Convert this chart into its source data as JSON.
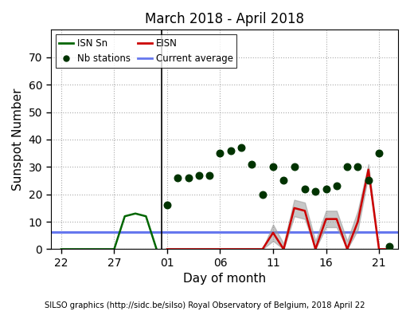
{
  "title": "March 2018 - April 2018",
  "xlabel": "Day of month",
  "ylabel": "Sunspot Number",
  "footer": "SILSO graphics (http://sidc.be/silso) Royal Observatory of Belgium, 2018 April 22",
  "ylim": [
    0,
    80
  ],
  "yticks": [
    0,
    10,
    20,
    30,
    40,
    50,
    60,
    70
  ],
  "current_average": 6.3,
  "background_color": "#ffffff",
  "plot_bg_color": "#ffffff",
  "isn_sn_march_days": [
    22,
    23,
    24,
    25,
    26,
    27,
    28,
    29,
    30,
    31
  ],
  "isn_sn_y": [
    0,
    0,
    0,
    0,
    0,
    0,
    12,
    13,
    12,
    0
  ],
  "eisn_april_days": [
    1,
    2,
    3,
    4,
    5,
    6,
    7,
    8,
    9,
    10,
    11,
    12,
    13,
    14,
    15,
    16,
    17,
    18,
    19,
    20,
    21,
    22
  ],
  "eisn_y": [
    0,
    0,
    0,
    0,
    0,
    0,
    0,
    0,
    0,
    0,
    6,
    0,
    15,
    14,
    0,
    11,
    11,
    0,
    10,
    29,
    0,
    0
  ],
  "eisn_shade_upper": [
    0,
    0,
    0,
    0,
    0,
    0,
    0,
    0,
    0,
    0,
    9,
    2,
    18,
    17,
    3,
    14,
    14,
    3,
    14,
    31,
    0,
    0
  ],
  "eisn_shade_lower": [
    0,
    0,
    0,
    0,
    0,
    0,
    0,
    0,
    0,
    0,
    3,
    0,
    12,
    11,
    0,
    8,
    8,
    0,
    7,
    27,
    0,
    0
  ],
  "nb_april_days": [
    1,
    2,
    3,
    4,
    5,
    6,
    7,
    8,
    9,
    10,
    11,
    12,
    13,
    14,
    15,
    16,
    17,
    18,
    19,
    20,
    21,
    22
  ],
  "nb_y": [
    16,
    26,
    26,
    27,
    27,
    35,
    36,
    37,
    31,
    20,
    30,
    25,
    30,
    22,
    21,
    22,
    23,
    30,
    30,
    25,
    35,
    1
  ],
  "isn_color": "#006600",
  "eisn_color": "#cc0000",
  "nb_color": "#003300",
  "avg_color": "#6677ee",
  "shade_color": "#999999",
  "vline_color": "#000000",
  "fig_width": 5.15,
  "fig_height": 3.9,
  "dpi": 100
}
